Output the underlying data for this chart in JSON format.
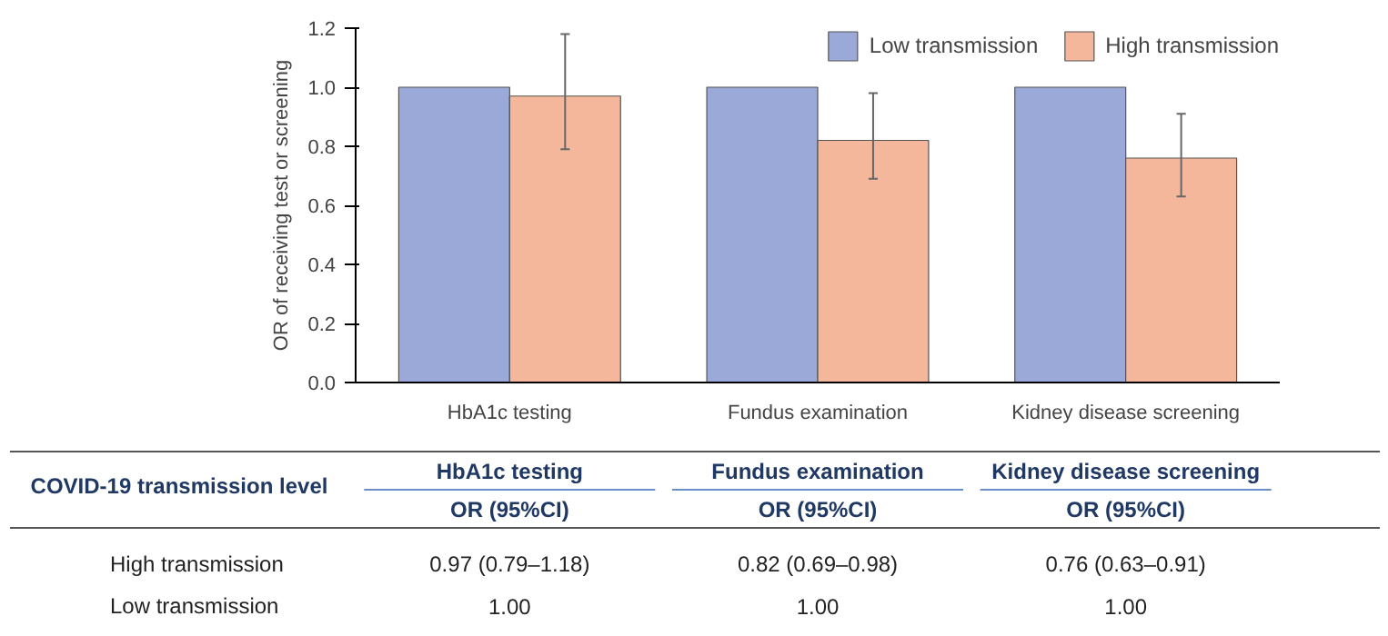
{
  "chart_data": {
    "type": "bar",
    "ylabel": "OR of receiving test or screening",
    "categories": [
      "HbA1c testing",
      "Fundus examination",
      "Kidney disease screening"
    ],
    "series": [
      {
        "name": "Low transmission",
        "color": "#9ba9d8",
        "values": [
          1.0,
          1.0,
          1.0
        ],
        "value_labels": [
          "1.00",
          "1.00",
          "1.00"
        ]
      },
      {
        "name": "High transmission",
        "color": "#f5b79c",
        "values": [
          0.97,
          0.82,
          0.76
        ],
        "errors": [
          [
            0.79,
            1.18
          ],
          [
            0.69,
            0.98
          ],
          [
            0.63,
            0.91
          ]
        ],
        "value_labels": [
          "0.97 (0.79–1.18)",
          "0.82 (0.69–0.98)",
          "0.76 (0.63–0.91)"
        ]
      }
    ],
    "ylim": [
      0,
      1.2
    ],
    "yticks": [
      {
        "value": 0,
        "label": "0.0"
      },
      {
        "value": 0.2,
        "label": "0.2"
      },
      {
        "value": 0.4,
        "label": "0.4"
      },
      {
        "value": 0.6,
        "label": "0.6"
      },
      {
        "value": 0.8,
        "label": "0.8"
      },
      {
        "value": 1.0,
        "label": "1.0"
      },
      {
        "value": 1.2,
        "label": "1.2"
      }
    ],
    "grid": false,
    "legend": "top right",
    "annotations": [
      "COVID-19 transmission level",
      "OR (95%CI)"
    ]
  }
}
